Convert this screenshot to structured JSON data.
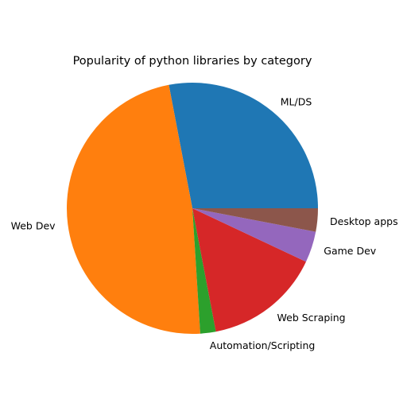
{
  "chart_data": {
    "type": "pie",
    "title": "Popularity of python libraries by category",
    "labels": [
      "ML/DS",
      "Web Dev",
      "Automation/Scripting",
      "Web Scraping",
      "Game Dev",
      "Desktop apps"
    ],
    "values": [
      28,
      48,
      2,
      15,
      4,
      3
    ],
    "colors": [
      "#1f77b4",
      "#ff7f0e",
      "#2ca02c",
      "#d62728",
      "#9467bd",
      "#8c564b"
    ],
    "start_angle_deg": 0,
    "direction": "counterclockwise",
    "legend": "none"
  }
}
